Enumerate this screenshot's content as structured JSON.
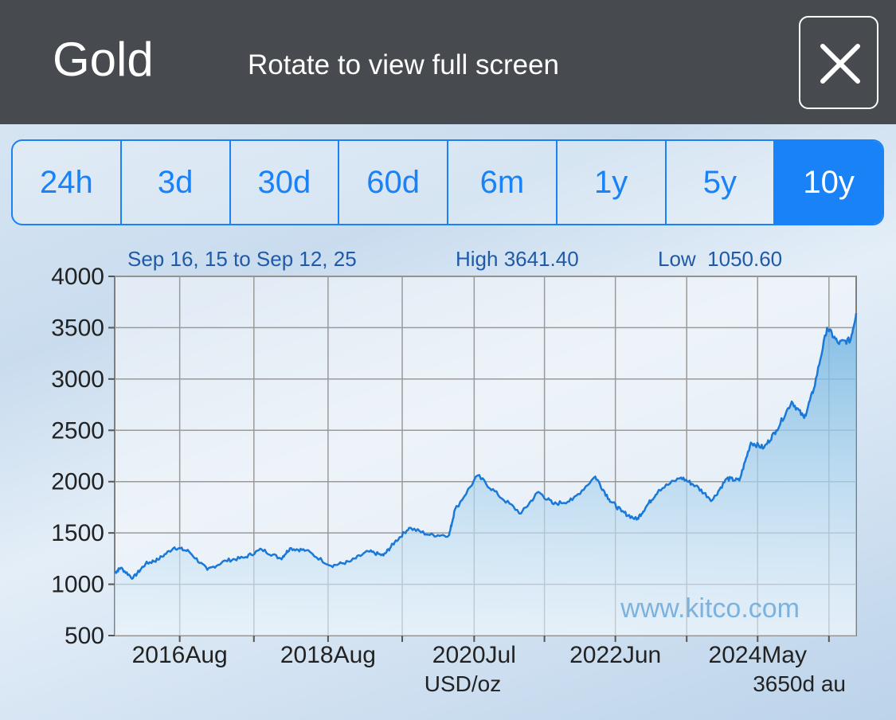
{
  "header": {
    "title": "Gold",
    "rotate_hint": "Rotate to view full screen",
    "close_icon": "close-icon"
  },
  "ranges": {
    "items": [
      "24h",
      "3d",
      "30d",
      "60d",
      "6m",
      "1y",
      "5y",
      "10y"
    ],
    "selected": "10y"
  },
  "colors": {
    "accent": "#1a82f7",
    "header_bg": "#474a4e",
    "line": "#1a78d8"
  },
  "chart_data": {
    "type": "area",
    "period_label": "Sep 16, 15 to Sep 12, 25",
    "high_label": "High 3641.40",
    "low_label": "Low  1050.60",
    "ylim": [
      500,
      4000
    ],
    "yticks": [
      "4000",
      "3500",
      "3000",
      "2500",
      "2000",
      "1500",
      "1000",
      "500"
    ],
    "xtick_labels": [
      "2016Aug",
      "2018Aug",
      "2020Jul",
      "2022Jun",
      "2024May"
    ],
    "xlim": [
      "2015-09-16",
      "2025-09-12"
    ],
    "xlabel": "USD/oz",
    "footnote": "3650d au",
    "watermark": "www.kitco.com",
    "grid": true,
    "series": [
      {
        "x": [
          "2015-09-16",
          "2015-10-15",
          "2015-12-15",
          "2016-02-15",
          "2016-04-15",
          "2016-07-06",
          "2016-09-15",
          "2016-12-15",
          "2017-03-15",
          "2017-06-15",
          "2017-09-08",
          "2017-12-12",
          "2018-01-25",
          "2018-04-15",
          "2018-08-16",
          "2018-11-15",
          "2019-02-15",
          "2019-05-01",
          "2019-06-25",
          "2019-09-04",
          "2019-12-15",
          "2020-03-19",
          "2020-04-15",
          "2020-08-06",
          "2020-11-15",
          "2021-03-08",
          "2021-06-01",
          "2021-08-15",
          "2021-11-15",
          "2022-03-08",
          "2022-05-15",
          "2022-07-15",
          "2022-09-28",
          "2022-11-15",
          "2023-01-15",
          "2023-05-04",
          "2023-07-15",
          "2023-10-05",
          "2023-12-15",
          "2024-02-15",
          "2024-04-12",
          "2024-06-15",
          "2024-08-15",
          "2024-10-30",
          "2024-12-30",
          "2025-02-15",
          "2025-04-22",
          "2025-06-15",
          "2025-08-15",
          "2025-09-12"
        ],
        "y": [
          1110,
          1160,
          1060,
          1200,
          1240,
          1360,
          1320,
          1140,
          1230,
          1260,
          1340,
          1250,
          1350,
          1330,
          1180,
          1220,
          1320,
          1280,
          1410,
          1550,
          1480,
          1480,
          1720,
          2060,
          1870,
          1690,
          1900,
          1780,
          1820,
          2050,
          1830,
          1710,
          1630,
          1760,
          1920,
          2040,
          1960,
          1820,
          2030,
          2010,
          2380,
          2330,
          2500,
          2780,
          2620,
          2900,
          3500,
          3350,
          3380,
          3641
        ]
      }
    ]
  }
}
